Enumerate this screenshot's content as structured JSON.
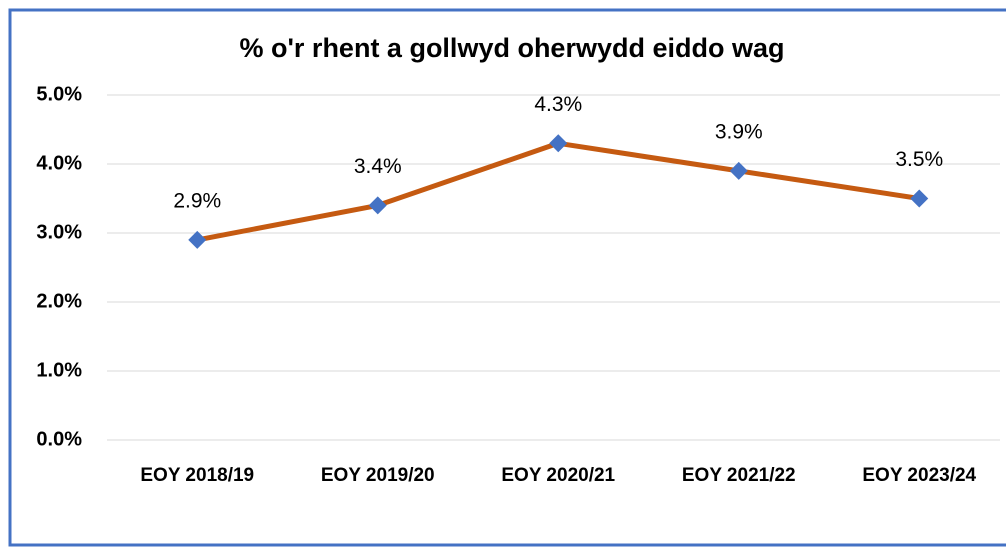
{
  "chart_data": {
    "type": "line",
    "title": "% o'r rhent a gollwyd oherwydd eiddo wag",
    "categories": [
      "EOY 2018/19",
      "EOY 2019/20",
      "EOY 2020/21",
      "EOY 2021/22",
      "EOY 2023/24"
    ],
    "values": [
      2.9,
      3.4,
      4.3,
      3.9,
      3.5
    ],
    "value_labels": [
      "2.9%",
      "3.4%",
      "4.3%",
      "3.9%",
      "3.5%"
    ],
    "color": "#c55a11",
    "marker_color": "#4472c4",
    "ylim": [
      0,
      5
    ],
    "yticks": [
      {
        "value": 0,
        "label": "0.0%"
      },
      {
        "value": 1,
        "label": "1.0%"
      },
      {
        "value": 2,
        "label": "2.0%"
      },
      {
        "value": 3,
        "label": "3.0%"
      },
      {
        "value": 4,
        "label": "4.0%"
      },
      {
        "value": 5,
        "label": "5.0%"
      }
    ],
    "grid": true
  }
}
